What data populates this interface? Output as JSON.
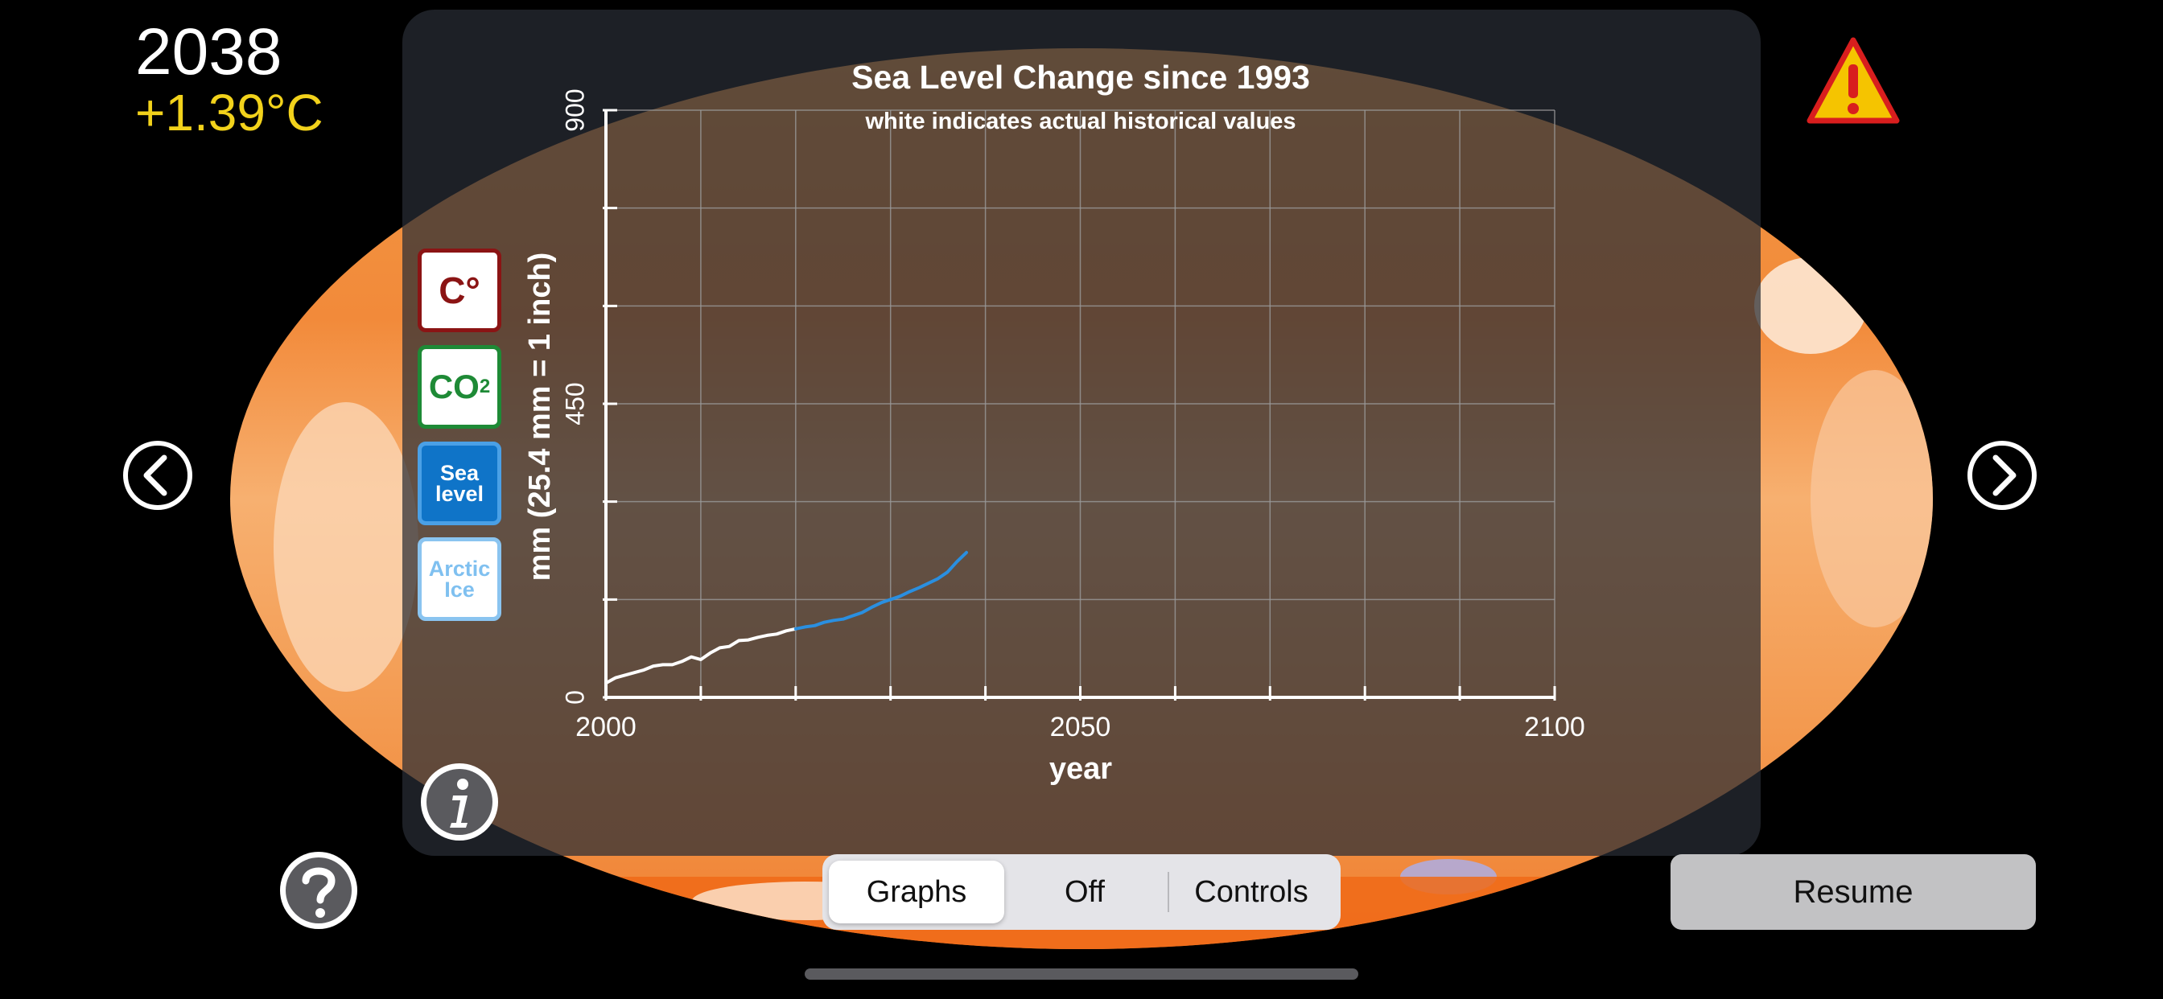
{
  "status": {
    "year": "2038",
    "temperature": "+1.39°C"
  },
  "icons": {
    "warning": "warning-triangle-icon",
    "prev": "chevron-left-icon",
    "next": "chevron-right-icon",
    "info": "info-icon",
    "help": "question-icon"
  },
  "data_buttons": {
    "temperature": "C°",
    "co2_main": "CO",
    "co2_sub": "2",
    "sea_line1": "Sea",
    "sea_line2": "level",
    "ice_line1": "Arctic",
    "ice_line2": "Ice"
  },
  "segmented": {
    "graphs": "Graphs",
    "off": "Off",
    "controls": "Controls",
    "selected": "Graphs"
  },
  "resume_label": "Resume",
  "colors": {
    "temperature_text": "#f2d21b",
    "historical_line": "#ffffff",
    "projection_line": "#2a8fe0",
    "warning_fill": "#f5c400",
    "warning_border": "#d81e1e"
  },
  "chart_data": {
    "type": "line",
    "title": "Sea Level Change since 1993",
    "subtitle": "white indicates actual historical values",
    "xlabel": "year",
    "ylabel": "mm (25.4 mm = 1 inch)",
    "xlim": [
      2000,
      2100
    ],
    "ylim": [
      0,
      900
    ],
    "x_ticks": [
      2000,
      2050,
      2100
    ],
    "y_ticks": [
      0,
      450,
      900
    ],
    "grid": true,
    "series": [
      {
        "role": "historical",
        "color": "#ffffff",
        "x": [
          2000,
          2001,
          2002,
          2003,
          2004,
          2005,
          2006,
          2007,
          2008,
          2009,
          2010,
          2011,
          2012,
          2013,
          2014,
          2015,
          2016,
          2017,
          2018,
          2019,
          2020
        ],
        "y": [
          22,
          30,
          34,
          38,
          42,
          48,
          50,
          50,
          55,
          62,
          58,
          68,
          76,
          78,
          87,
          88,
          92,
          95,
          97,
          102,
          105
        ]
      },
      {
        "role": "projection",
        "color": "#2a8fe0",
        "x": [
          2020,
          2021,
          2022,
          2023,
          2024,
          2025,
          2026,
          2027,
          2028,
          2029,
          2030,
          2031,
          2032,
          2033,
          2034,
          2035,
          2036,
          2037,
          2038
        ],
        "y": [
          105,
          108,
          110,
          115,
          118,
          120,
          125,
          130,
          138,
          145,
          150,
          155,
          162,
          168,
          175,
          182,
          192,
          208,
          222
        ]
      }
    ]
  }
}
